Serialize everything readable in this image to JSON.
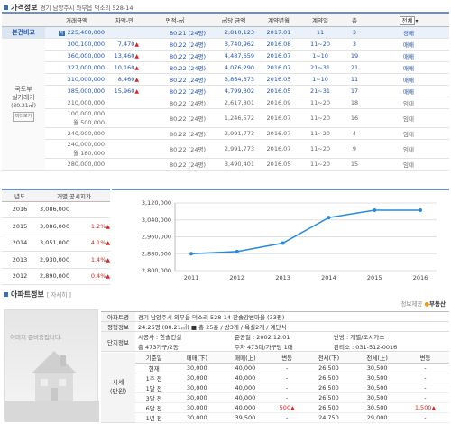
{
  "price_info": {
    "title": "가격정보",
    "address": "경기 남양주시 와부읍 덕소리 528-14",
    "headers": [
      "거래금액",
      "차액-만",
      "면적-㎡",
      "㎡당 금액",
      "계약년월",
      "계약일",
      "층"
    ],
    "filter_value": "전체",
    "side_label_top": "본건비교",
    "side_label_mid": [
      "국토부",
      "실거래가",
      "(80.21㎡)"
    ],
    "side_label_badge": "미더보기",
    "rows": [
      {
        "amount": "225,400,000",
        "badge": "저",
        "diff": "",
        "area": "80.21 (24평)",
        "per": "2,810,123",
        "ym": "2017.01",
        "day": "11",
        "floor": "3",
        "type": "경매",
        "highlight": true
      },
      {
        "amount": "300,100,000",
        "diff": "7,470",
        "up": true,
        "area": "80.22 (24평)",
        "per": "3,740,962",
        "ym": "2016.08",
        "day": "11~20",
        "floor": "3",
        "type": "매매"
      },
      {
        "amount": "360,000,000",
        "diff": "13,460",
        "up": true,
        "area": "80.22 (24평)",
        "per": "4,487,659",
        "ym": "2016.07",
        "day": "1~10",
        "floor": "19",
        "type": "매매"
      },
      {
        "amount": "327,000,000",
        "diff": "10,160",
        "up": true,
        "area": "80.22 (24평)",
        "per": "4,076,290",
        "ym": "2016.07",
        "day": "21~31",
        "floor": "21",
        "type": "매매"
      },
      {
        "amount": "310,000,000",
        "diff": "8,460",
        "up": true,
        "area": "80.22 (24평)",
        "per": "3,864,373",
        "ym": "2016.05",
        "day": "1~10",
        "floor": "11",
        "type": "매매"
      },
      {
        "amount": "385,000,000",
        "diff": "15,960",
        "up": true,
        "area": "80.22 (24평)",
        "per": "4,799,302",
        "ym": "2016.05",
        "day": "21~31",
        "floor": "17",
        "type": "매매"
      },
      {
        "amount": "210,000,000",
        "diff": "",
        "area": "80.22 (24평)",
        "per": "2,617,801",
        "ym": "2016.09",
        "day": "11~20",
        "floor": "18",
        "type": "임대"
      },
      {
        "amount": "100,000,000",
        "amount2": "월 500,000",
        "diff": "",
        "area": "80.22 (24평)",
        "per": "1,246,572",
        "ym": "2016.07",
        "day": "11~20",
        "floor": "16",
        "type": "임대"
      },
      {
        "amount": "240,000,000",
        "diff": "",
        "area": "80.22 (24평)",
        "per": "2,991,773",
        "ym": "2016.07",
        "day": "11~20",
        "floor": "4",
        "type": "임대"
      },
      {
        "amount": "240,000,000",
        "amount2": "월 180,000",
        "diff": "",
        "area": "80.22 (24평)",
        "per": "2,991,773",
        "ym": "2016.07",
        "day": "11~20",
        "floor": "9",
        "type": "임대"
      },
      {
        "amount": "280,000,000",
        "diff": "",
        "area": "80.22 (24평)",
        "per": "3,490,401",
        "ym": "2016.05",
        "day": "11~20",
        "floor": "15",
        "type": "임대"
      }
    ]
  },
  "official_price": {
    "headers": [
      "년도",
      "개별 공시지가"
    ],
    "rows": [
      {
        "year": "2016",
        "price": "3,086,000",
        "pct": ""
      },
      {
        "year": "2015",
        "price": "3,086,000",
        "pct": "1.2%"
      },
      {
        "year": "2014",
        "price": "3,051,000",
        "pct": "4.1%"
      },
      {
        "year": "2013",
        "price": "2,930,000",
        "pct": "1.4%"
      },
      {
        "year": "2012",
        "price": "2,890,000",
        "pct": "0.4%"
      }
    ]
  },
  "chart_data": {
    "type": "line",
    "x": [
      "2011",
      "2012",
      "2013",
      "2014",
      "2015",
      "2016"
    ],
    "series": [
      {
        "values": [
          2880000,
          2890000,
          2930000,
          3051000,
          3086000,
          3086000
        ]
      }
    ],
    "ylim": [
      2800000,
      3120000
    ],
    "yticks": [
      "3,120,000",
      "3,040,000",
      "2,960,000",
      "2,880,000",
      "2,800,000"
    ],
    "grid": true,
    "color": "#2a8ad8"
  },
  "apartment": {
    "title": "아파트정보",
    "detail_link": "[ 자세히 ]",
    "provider": "정보제공",
    "provider_brand": "부동산",
    "image_caption": "이미지 준비중입니다.",
    "label_apt": "아파트명",
    "apt_name": "경기 남양주시 와부읍 덕소리 528-14 한솔강변마을 (33평)",
    "label_type": "평형정보",
    "type_info": "24.26평 (80.21㎡) ■ 총 25층 / 방3개 / 욕실2개 / 계단식",
    "label_complex": "단지정보",
    "builder": "시공사 : 한솔건설",
    "completed": "준공일 : 2002.12.01",
    "heating": "난방 : 개별/도시가스",
    "households": "총 473가구/2동",
    "parking": "주차 473대/가구당 1대",
    "office": "관리소 : 031-512-0016",
    "label_price": [
      "시세",
      "(만원)"
    ],
    "price_headers": [
      "기준일",
      "매매(下)",
      "매매(上)",
      "변동",
      "전세(下)",
      "전세(上)",
      "변동"
    ],
    "price_rows": [
      {
        "date": "현재",
        "s_lo": "30,000",
        "s_hi": "40,000",
        "s_ch": "-",
        "j_lo": "26,500",
        "j_hi": "30,500",
        "j_ch": "-",
        "bold": true
      },
      {
        "date": "1주 전",
        "s_lo": "30,000",
        "s_hi": "40,000",
        "s_ch": "-",
        "j_lo": "26,500",
        "j_hi": "30,500",
        "j_ch": "-"
      },
      {
        "date": "1달 전",
        "s_lo": "30,000",
        "s_hi": "40,000",
        "s_ch": "-",
        "j_lo": "26,500",
        "j_hi": "30,500",
        "j_ch": "-"
      },
      {
        "date": "3달 전",
        "s_lo": "30,000",
        "s_hi": "40,000",
        "s_ch": "-",
        "j_lo": "26,500",
        "j_hi": "30,500",
        "j_ch": "-"
      },
      {
        "date": "6달 전",
        "s_lo": "30,000",
        "s_hi": "40,000",
        "s_ch": "500",
        "s_up": true,
        "j_lo": "26,500",
        "j_hi": "30,500",
        "j_ch": "1,500",
        "j_up": true
      },
      {
        "date": "1년 전",
        "s_lo": "30,000",
        "s_hi": "39,500",
        "s_ch": "-",
        "j_lo": "24,750",
        "j_hi": "29,000",
        "j_ch": "-"
      }
    ]
  }
}
